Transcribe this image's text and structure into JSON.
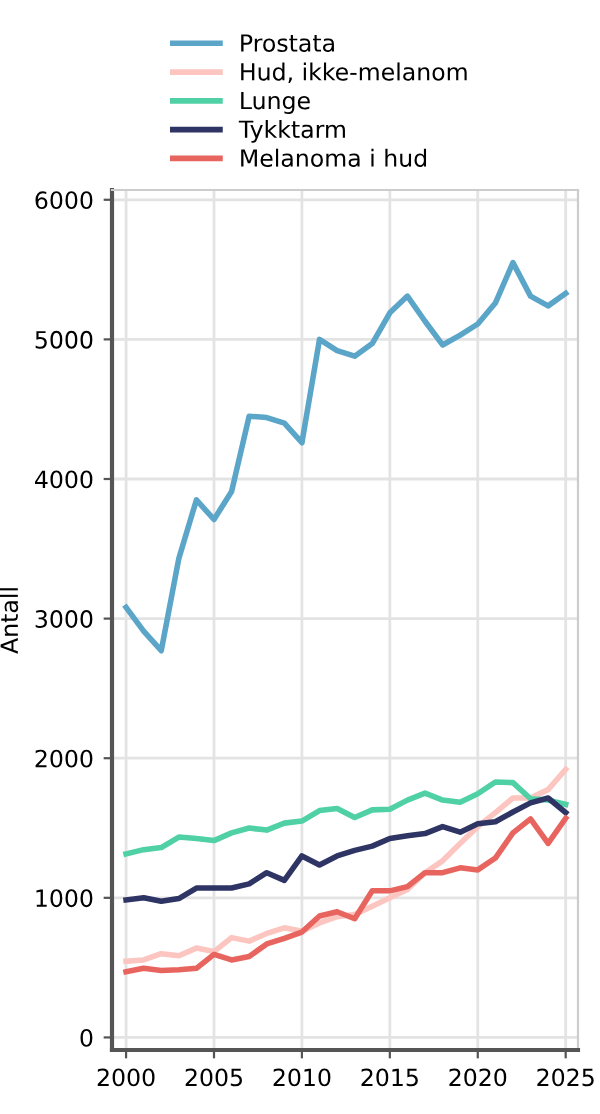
{
  "chart_data": {
    "type": "line",
    "ylabel": "Antall",
    "x": [
      2000,
      2001,
      2002,
      2003,
      2004,
      2005,
      2006,
      2007,
      2008,
      2009,
      2010,
      2011,
      2012,
      2013,
      2014,
      2015,
      2016,
      2017,
      2018,
      2019,
      2020,
      2021,
      2022,
      2023,
      2024,
      2025
    ],
    "xlim": [
      1999.2,
      2025.7
    ],
    "xticks": [
      2000,
      2005,
      2010,
      2015,
      2020,
      2025
    ],
    "ylim": [
      -90,
      6070
    ],
    "yticks": [
      0,
      1000,
      2000,
      3000,
      4000,
      5000,
      6000
    ],
    "grid": true,
    "legend": "top",
    "marker": "none",
    "line_style": "solid",
    "series": [
      {
        "name": "Prostata",
        "color": "#5aa5c8",
        "values": [
          3080,
          2910,
          2770,
          3430,
          3850,
          3710,
          3910,
          4450,
          4440,
          4400,
          4260,
          5000,
          4920,
          4880,
          4970,
          5190,
          5310,
          5130,
          4960,
          5030,
          5110,
          5260,
          5550,
          5310,
          5240,
          5330
        ]
      },
      {
        "name": "Hud, ikke-melanom",
        "color": "#fcc5c0",
        "values": [
          545,
          555,
          600,
          585,
          640,
          615,
          715,
          690,
          745,
          785,
          760,
          820,
          865,
          880,
          940,
          1000,
          1060,
          1180,
          1265,
          1390,
          1510,
          1610,
          1715,
          1715,
          1775,
          1920
        ]
      },
      {
        "name": "Lunge",
        "color": "#4fd1a5",
        "values": [
          1315,
          1345,
          1360,
          1435,
          1425,
          1410,
          1465,
          1500,
          1485,
          1535,
          1550,
          1625,
          1640,
          1575,
          1630,
          1635,
          1700,
          1750,
          1700,
          1685,
          1745,
          1830,
          1825,
          1710,
          1700,
          1670
        ]
      },
      {
        "name": "Tykktarm",
        "color": "#2e3564",
        "values": [
          985,
          1000,
          975,
          995,
          1070,
          1070,
          1070,
          1100,
          1180,
          1125,
          1300,
          1235,
          1300,
          1340,
          1370,
          1425,
          1445,
          1460,
          1510,
          1470,
          1530,
          1545,
          1615,
          1680,
          1715,
          1610
        ]
      },
      {
        "name": "Melanoma i hud",
        "color": "#e8655f",
        "values": [
          470,
          495,
          480,
          485,
          495,
          595,
          555,
          580,
          670,
          710,
          755,
          870,
          900,
          850,
          1050,
          1050,
          1080,
          1180,
          1180,
          1215,
          1200,
          1285,
          1465,
          1565,
          1390,
          1570
        ]
      }
    ]
  }
}
